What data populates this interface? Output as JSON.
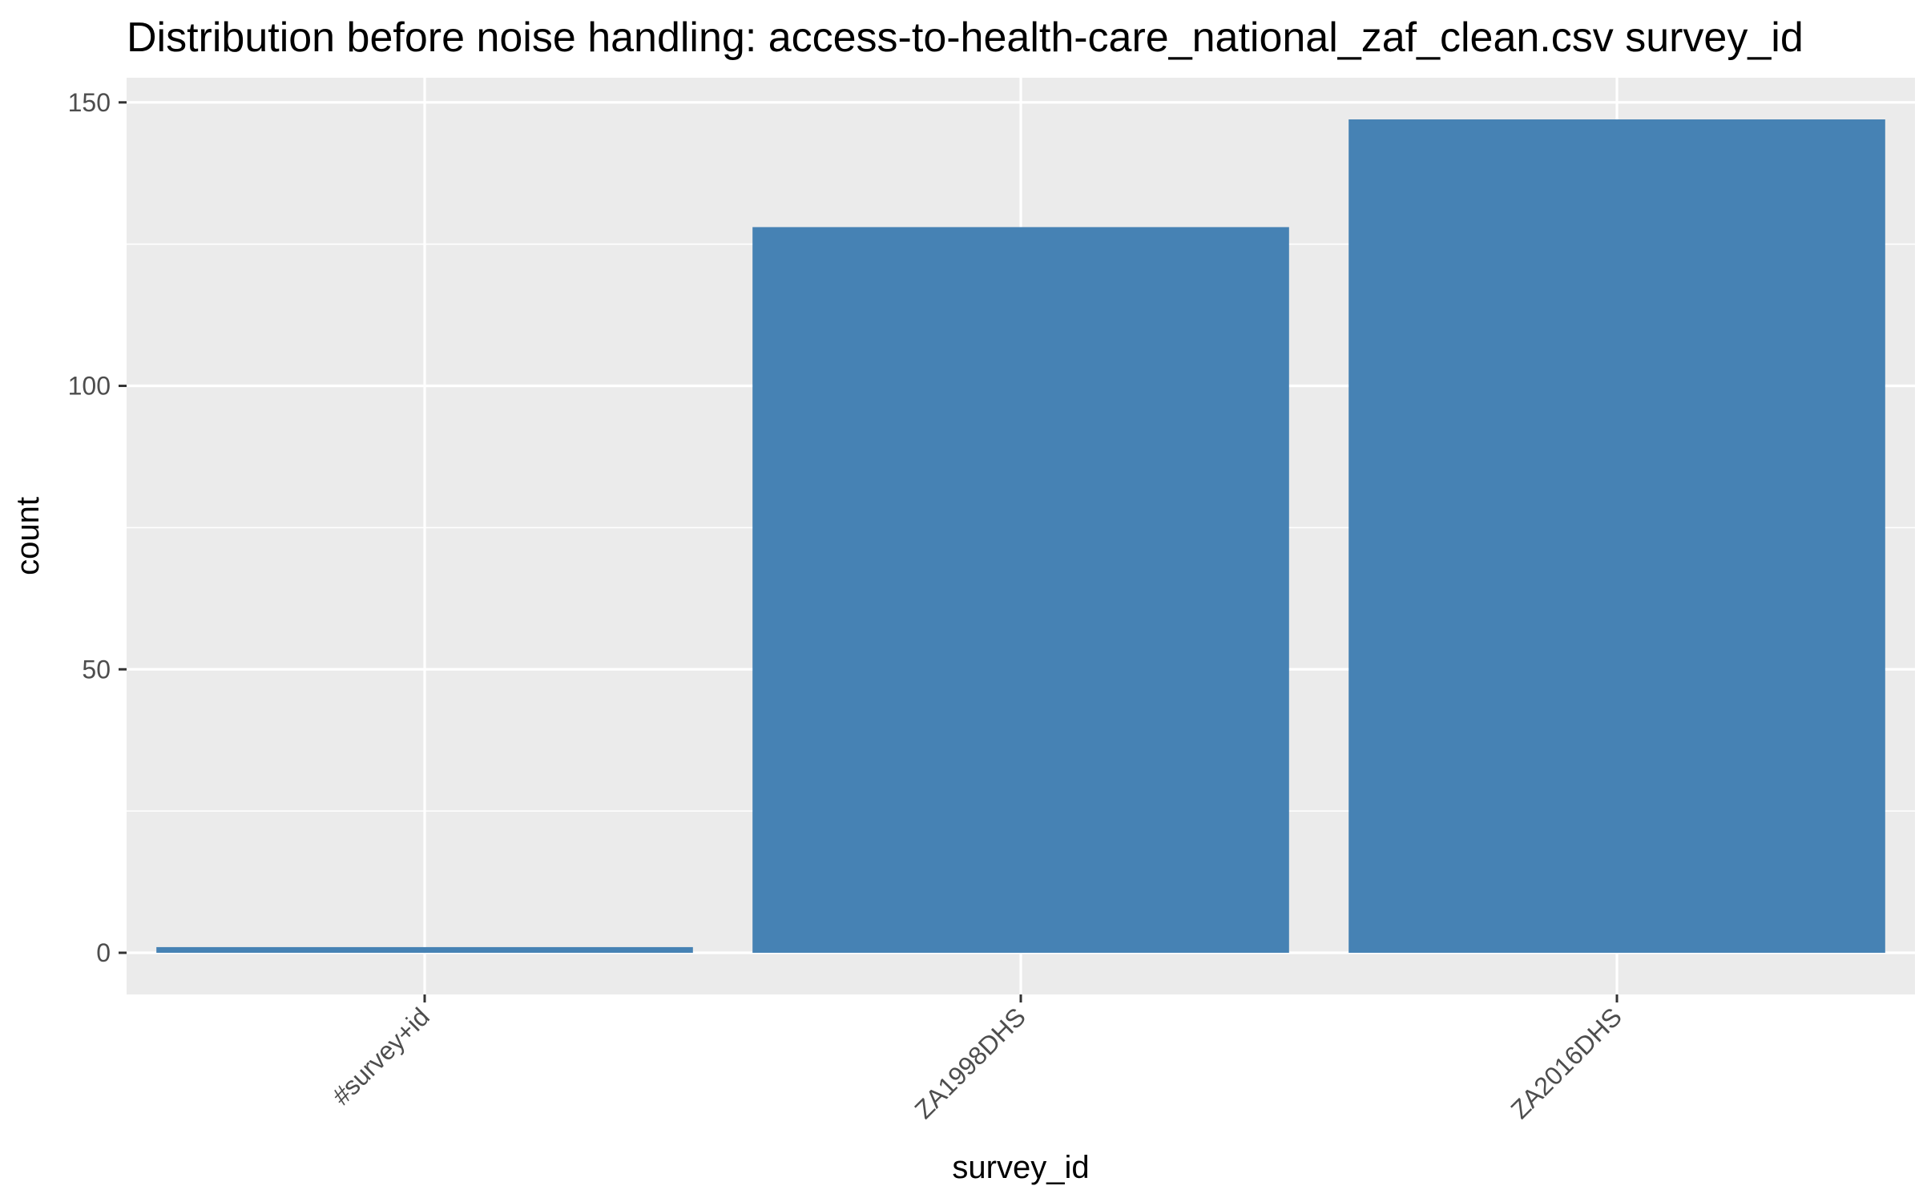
{
  "chart_data": {
    "type": "bar",
    "title": "Distribution before noise handling: access-to-health-care_national_zaf_clean.csv survey_id",
    "xlabel": "survey_id",
    "ylabel": "count",
    "categories": [
      "#survey+id",
      "ZA1998DHS",
      "ZA2016DHS"
    ],
    "values": [
      1,
      128,
      147
    ],
    "ylim": [
      -7.35,
      154.35
    ],
    "yticks": [
      0,
      50,
      100,
      150
    ],
    "grid": true,
    "legend": "none"
  },
  "colors": {
    "bar": "#4682b4",
    "panel": "#ebebeb",
    "grid": "#ffffff",
    "tick_text": "#4d4d4d",
    "text": "#000000"
  }
}
